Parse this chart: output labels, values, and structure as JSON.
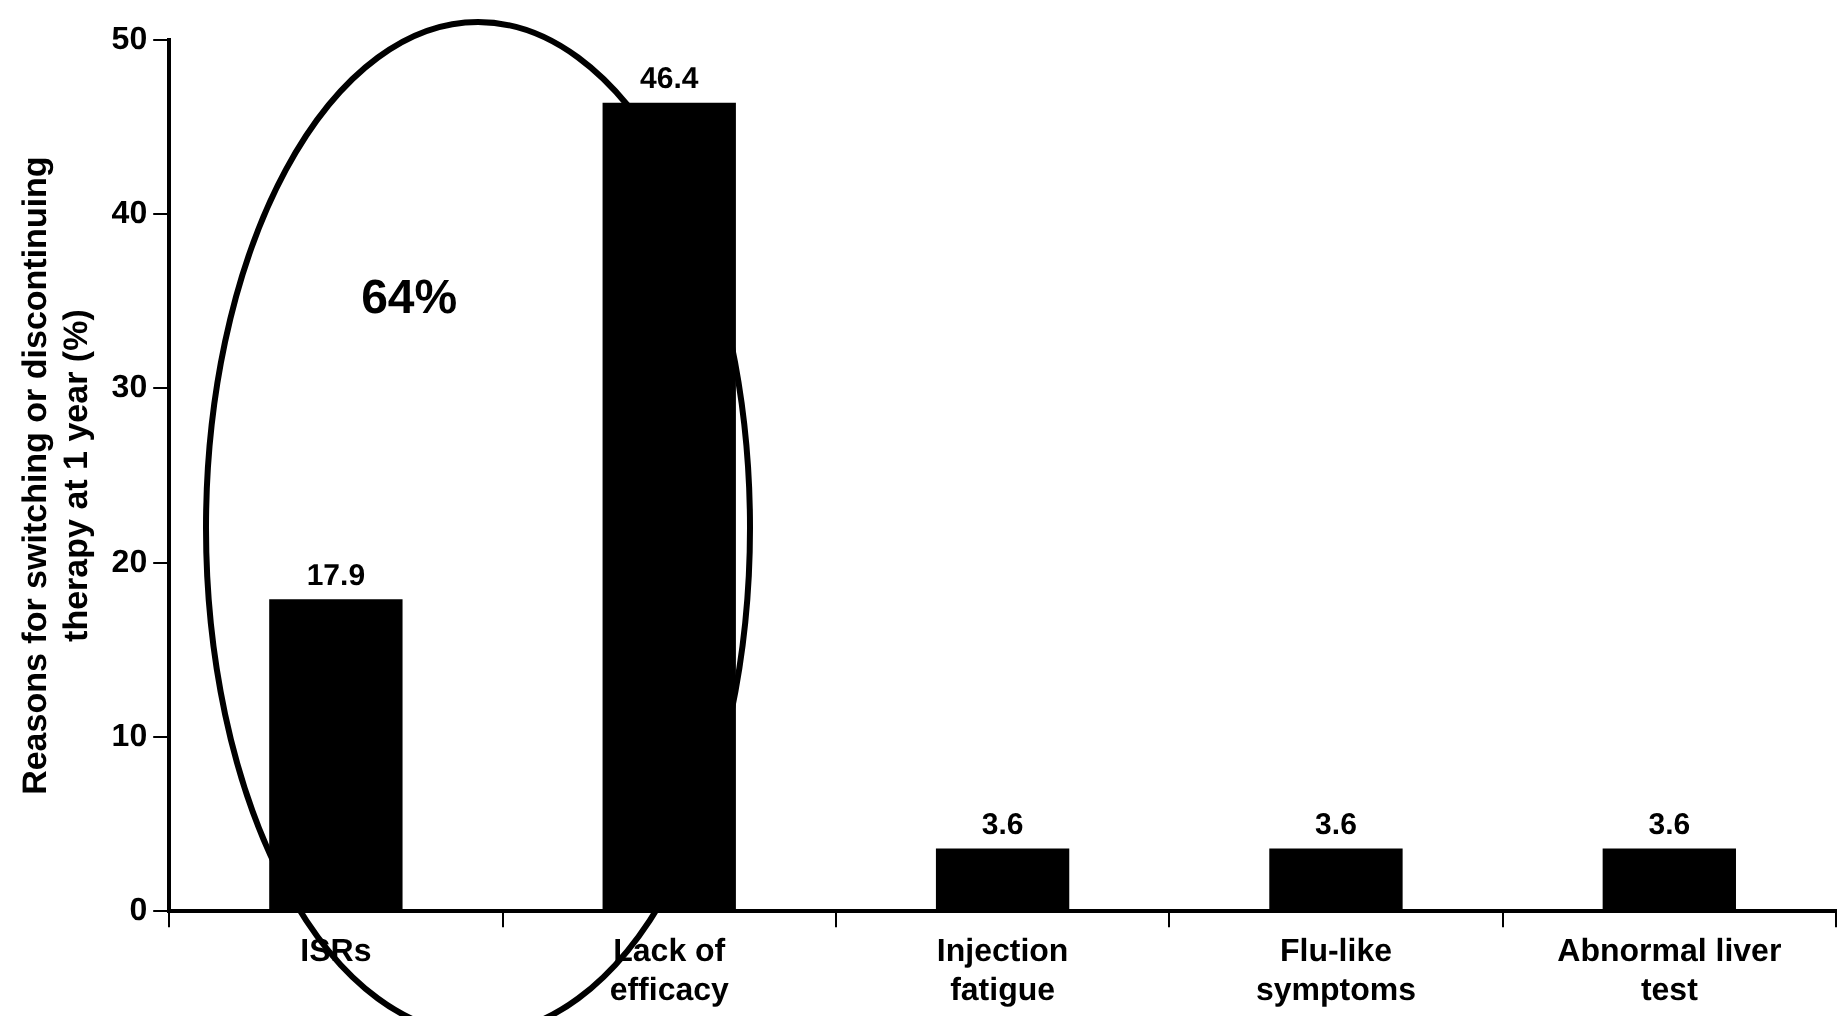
{
  "chart_data": {
    "type": "bar",
    "ylabel": "Reasons for switching or discontinuing therapy at 1 year (%)",
    "categories": [
      "ISRs",
      "Lack of efficacy",
      "Injection fatigue",
      "Flu-like symptoms",
      "Abnormal liver test"
    ],
    "values": [
      17.9,
      46.4,
      3.6,
      3.6,
      3.6
    ],
    "color": "#000000",
    "ylim": [
      0,
      50
    ],
    "yticks": [
      0,
      10,
      20,
      30,
      40,
      50
    ],
    "grid": false,
    "legend": false,
    "data_labels": true,
    "annotations": [
      "64%"
    ]
  }
}
